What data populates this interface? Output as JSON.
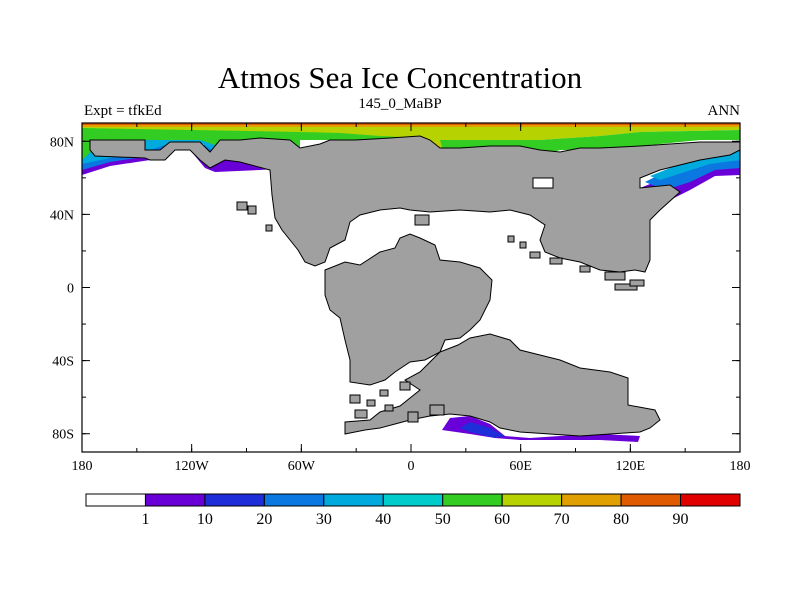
{
  "title": "Atmos Sea Ice Concentration",
  "subtitle_left": "Expt = tfkEd",
  "subtitle_center": "145_0_MaBP",
  "subtitle_right": "ANN",
  "map": {
    "lon_range": [
      -180,
      180
    ],
    "lat_range": [
      -90,
      90
    ],
    "x_ticks": [
      {
        "value": -180,
        "label": "180"
      },
      {
        "value": -120,
        "label": "120W"
      },
      {
        "value": -60,
        "label": "60W"
      },
      {
        "value": 0,
        "label": "0"
      },
      {
        "value": 60,
        "label": "60E"
      },
      {
        "value": 120,
        "label": "120E"
      },
      {
        "value": 180,
        "label": "180"
      }
    ],
    "y_ticks": [
      {
        "value": 80,
        "label": "80N"
      },
      {
        "value": 40,
        "label": "40N"
      },
      {
        "value": 0,
        "label": "0"
      },
      {
        "value": -40,
        "label": "40S"
      },
      {
        "value": -80,
        "label": "80S"
      }
    ],
    "land_color": "#a0a0a0",
    "ocean_color": "#ffffff"
  },
  "colorbar": {
    "levels": [
      "1",
      "10",
      "20",
      "30",
      "40",
      "50",
      "60",
      "70",
      "80",
      "90"
    ],
    "colors": [
      "#ffffff",
      "#6a00d8",
      "#1e2ed8",
      "#0a78e0",
      "#00aadc",
      "#00cccc",
      "#33cc22",
      "#b6d200",
      "#e0a000",
      "#e05a00",
      "#e00000"
    ]
  }
}
